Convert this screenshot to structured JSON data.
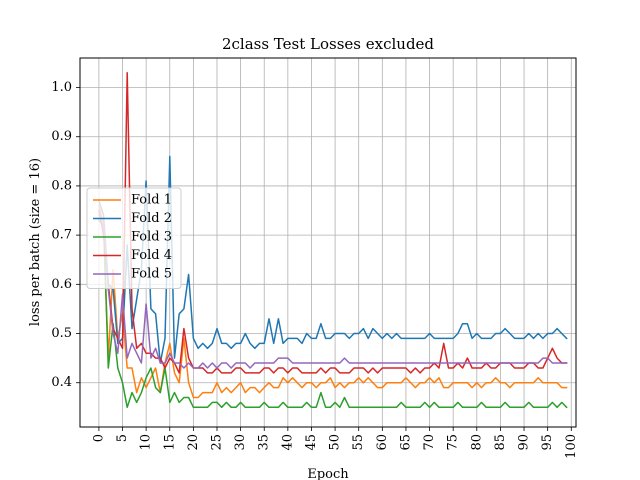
{
  "chart_data": {
    "type": "line",
    "title": "2class Test Losses excluded",
    "xlabel": "Epoch",
    "ylabel": "loss per batch (size = 16)",
    "xlim": [
      -4,
      101
    ],
    "ylim": [
      0.31,
      1.06
    ],
    "xticks": [
      0,
      5,
      10,
      15,
      20,
      25,
      30,
      35,
      40,
      45,
      50,
      55,
      60,
      65,
      70,
      75,
      80,
      85,
      90,
      95,
      100
    ],
    "yticks": [
      0.4,
      0.5,
      0.6,
      0.7,
      0.8,
      0.9,
      1.0
    ],
    "xtick_labels": [
      "0",
      "5",
      "10",
      "15",
      "20",
      "25",
      "30",
      "35",
      "40",
      "45",
      "50",
      "55",
      "60",
      "65",
      "70",
      "75",
      "80",
      "85",
      "90",
      "95",
      "100"
    ],
    "ytick_labels": [
      "0.4",
      "0.5",
      "0.6",
      "0.7",
      "0.8",
      "0.9",
      "1.0"
    ],
    "grid": true,
    "legend_position": "center-left",
    "x": [
      0,
      1,
      2,
      3,
      4,
      5,
      6,
      7,
      8,
      9,
      10,
      11,
      12,
      13,
      14,
      15,
      16,
      17,
      18,
      19,
      20,
      21,
      22,
      23,
      24,
      25,
      26,
      27,
      28,
      29,
      30,
      31,
      32,
      33,
      34,
      35,
      36,
      37,
      38,
      39,
      40,
      41,
      42,
      43,
      44,
      45,
      46,
      47,
      48,
      49,
      50,
      51,
      52,
      53,
      54,
      55,
      56,
      57,
      58,
      59,
      60,
      61,
      62,
      63,
      64,
      65,
      66,
      67,
      68,
      69,
      70,
      71,
      72,
      73,
      74,
      75,
      76,
      77,
      78,
      79,
      80,
      81,
      82,
      83,
      84,
      85,
      86,
      87,
      88,
      89,
      90,
      91,
      92,
      93,
      94,
      95,
      96,
      97,
      98,
      99
    ],
    "series": [
      {
        "name": "Fold 1",
        "color": "#ff7f0e",
        "values": [
          0.76,
          0.72,
          0.45,
          0.63,
          0.49,
          0.54,
          0.43,
          0.43,
          0.38,
          0.41,
          0.39,
          0.41,
          0.43,
          0.38,
          0.44,
          0.48,
          0.42,
          0.4,
          0.49,
          0.4,
          0.37,
          0.37,
          0.38,
          0.38,
          0.38,
          0.4,
          0.38,
          0.39,
          0.38,
          0.39,
          0.4,
          0.38,
          0.39,
          0.39,
          0.38,
          0.39,
          0.4,
          0.39,
          0.39,
          0.41,
          0.4,
          0.41,
          0.4,
          0.39,
          0.4,
          0.4,
          0.39,
          0.4,
          0.4,
          0.41,
          0.39,
          0.4,
          0.39,
          0.4,
          0.4,
          0.41,
          0.4,
          0.41,
          0.4,
          0.39,
          0.39,
          0.4,
          0.4,
          0.4,
          0.4,
          0.41,
          0.4,
          0.39,
          0.4,
          0.4,
          0.41,
          0.4,
          0.41,
          0.39,
          0.39,
          0.4,
          0.4,
          0.4,
          0.4,
          0.39,
          0.4,
          0.39,
          0.4,
          0.4,
          0.41,
          0.4,
          0.4,
          0.39,
          0.4,
          0.4,
          0.4,
          0.4,
          0.4,
          0.41,
          0.4,
          0.4,
          0.4,
          0.4,
          0.39,
          0.39
        ]
      },
      {
        "name": "Fold 2",
        "color": "#1f77b4",
        "values": [
          0.77,
          0.74,
          0.6,
          0.59,
          0.48,
          0.49,
          0.68,
          0.51,
          0.57,
          0.63,
          0.81,
          0.55,
          0.54,
          0.44,
          0.49,
          0.86,
          0.45,
          0.54,
          0.55,
          0.62,
          0.49,
          0.47,
          0.48,
          0.47,
          0.48,
          0.51,
          0.48,
          0.48,
          0.47,
          0.48,
          0.48,
          0.5,
          0.48,
          0.47,
          0.48,
          0.48,
          0.53,
          0.48,
          0.53,
          0.48,
          0.49,
          0.49,
          0.49,
          0.48,
          0.5,
          0.49,
          0.49,
          0.52,
          0.49,
          0.49,
          0.5,
          0.5,
          0.5,
          0.49,
          0.5,
          0.5,
          0.51,
          0.49,
          0.51,
          0.5,
          0.49,
          0.5,
          0.49,
          0.5,
          0.49,
          0.49,
          0.49,
          0.49,
          0.49,
          0.49,
          0.5,
          0.49,
          0.49,
          0.49,
          0.49,
          0.49,
          0.5,
          0.52,
          0.52,
          0.49,
          0.5,
          0.49,
          0.49,
          0.49,
          0.5,
          0.5,
          0.51,
          0.5,
          0.49,
          0.49,
          0.49,
          0.5,
          0.49,
          0.5,
          0.49,
          0.5,
          0.5,
          0.51,
          0.5,
          0.49
        ]
      },
      {
        "name": "Fold 3",
        "color": "#2ca02c",
        "values": [
          0.73,
          0.72,
          0.43,
          0.52,
          0.43,
          0.4,
          0.35,
          0.38,
          0.36,
          0.38,
          0.41,
          0.43,
          0.39,
          0.38,
          0.43,
          0.36,
          0.38,
          0.36,
          0.37,
          0.37,
          0.35,
          0.35,
          0.35,
          0.35,
          0.36,
          0.36,
          0.35,
          0.36,
          0.35,
          0.35,
          0.36,
          0.35,
          0.35,
          0.35,
          0.35,
          0.36,
          0.35,
          0.35,
          0.35,
          0.36,
          0.35,
          0.35,
          0.35,
          0.35,
          0.36,
          0.35,
          0.35,
          0.38,
          0.35,
          0.35,
          0.36,
          0.35,
          0.37,
          0.35,
          0.35,
          0.35,
          0.35,
          0.35,
          0.35,
          0.35,
          0.35,
          0.35,
          0.35,
          0.35,
          0.36,
          0.35,
          0.35,
          0.35,
          0.35,
          0.36,
          0.35,
          0.36,
          0.35,
          0.35,
          0.35,
          0.35,
          0.36,
          0.35,
          0.35,
          0.35,
          0.35,
          0.36,
          0.35,
          0.35,
          0.35,
          0.35,
          0.36,
          0.35,
          0.35,
          0.35,
          0.35,
          0.36,
          0.35,
          0.35,
          0.35,
          0.35,
          0.36,
          0.35,
          0.36,
          0.35
        ]
      },
      {
        "name": "Fold 4",
        "color": "#d62728",
        "values": [
          0.75,
          0.7,
          0.6,
          0.51,
          0.49,
          0.47,
          1.03,
          0.55,
          0.47,
          0.48,
          0.46,
          0.46,
          0.45,
          0.45,
          0.43,
          0.45,
          0.44,
          0.42,
          0.51,
          0.45,
          0.43,
          0.43,
          0.43,
          0.42,
          0.42,
          0.43,
          0.42,
          0.42,
          0.42,
          0.43,
          0.43,
          0.42,
          0.42,
          0.42,
          0.42,
          0.43,
          0.43,
          0.42,
          0.43,
          0.43,
          0.42,
          0.43,
          0.43,
          0.42,
          0.42,
          0.42,
          0.42,
          0.43,
          0.42,
          0.43,
          0.43,
          0.42,
          0.42,
          0.42,
          0.43,
          0.43,
          0.43,
          0.42,
          0.43,
          0.42,
          0.43,
          0.43,
          0.43,
          0.43,
          0.43,
          0.43,
          0.42,
          0.43,
          0.42,
          0.43,
          0.43,
          0.44,
          0.43,
          0.48,
          0.43,
          0.43,
          0.44,
          0.43,
          0.45,
          0.43,
          0.43,
          0.43,
          0.44,
          0.43,
          0.43,
          0.44,
          0.44,
          0.44,
          0.43,
          0.43,
          0.43,
          0.44,
          0.44,
          0.43,
          0.43,
          0.45,
          0.47,
          0.45,
          0.44,
          0.44
        ]
      },
      {
        "name": "Fold 5",
        "color": "#9467bd",
        "values": [
          0.74,
          0.73,
          0.59,
          0.5,
          0.46,
          0.58,
          0.45,
          0.48,
          0.46,
          0.44,
          0.56,
          0.45,
          0.47,
          0.44,
          0.44,
          0.46,
          0.44,
          0.44,
          0.43,
          0.44,
          0.43,
          0.43,
          0.44,
          0.43,
          0.44,
          0.43,
          0.44,
          0.44,
          0.43,
          0.44,
          0.44,
          0.44,
          0.43,
          0.44,
          0.44,
          0.44,
          0.44,
          0.44,
          0.45,
          0.45,
          0.45,
          0.44,
          0.44,
          0.44,
          0.44,
          0.44,
          0.44,
          0.44,
          0.44,
          0.44,
          0.44,
          0.44,
          0.45,
          0.44,
          0.44,
          0.44,
          0.44,
          0.44,
          0.44,
          0.44,
          0.44,
          0.44,
          0.44,
          0.44,
          0.44,
          0.44,
          0.44,
          0.44,
          0.44,
          0.44,
          0.44,
          0.44,
          0.44,
          0.44,
          0.44,
          0.44,
          0.44,
          0.44,
          0.44,
          0.44,
          0.44,
          0.44,
          0.44,
          0.44,
          0.44,
          0.44,
          0.44,
          0.44,
          0.44,
          0.44,
          0.44,
          0.44,
          0.44,
          0.44,
          0.45,
          0.45,
          0.44,
          0.44,
          0.44,
          0.44
        ]
      }
    ]
  }
}
